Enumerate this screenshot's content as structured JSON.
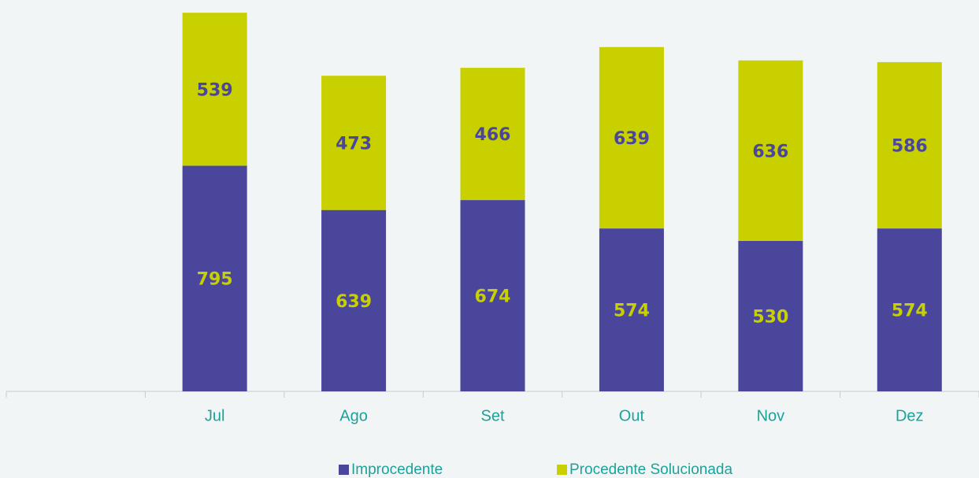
{
  "chart_data": {
    "type": "stacked_bar",
    "categories": [
      null,
      "Jul",
      "Ago",
      "Set",
      "Out",
      "Nov",
      "Dez"
    ],
    "series": [
      {
        "name": "Improcedente",
        "color": "#4a469c",
        "label_color": "#c8d000",
        "values": [
          null,
          795,
          639,
          674,
          574,
          530,
          574
        ]
      },
      {
        "name": "Procedente Solucionada",
        "color": "#c8d000",
        "label_color": "#4a469c",
        "values": [
          null,
          539,
          473,
          466,
          639,
          636,
          586
        ]
      }
    ],
    "ylim": [
      0,
      1340
    ]
  }
}
